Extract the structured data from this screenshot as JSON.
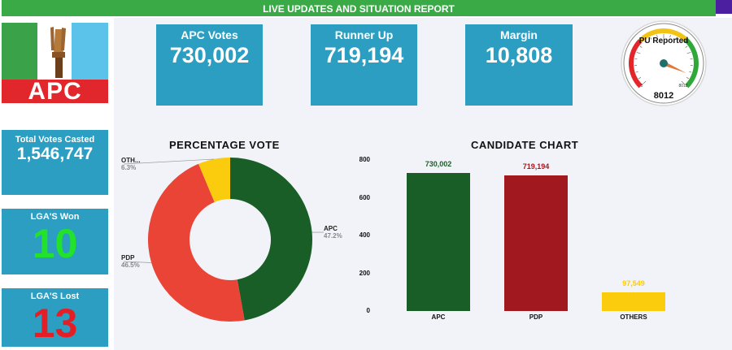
{
  "header": {
    "title": "LIVE UPDATES AND SITUATION REPORT"
  },
  "logo": {
    "text": "APC"
  },
  "summary": {
    "apc_votes_label": "APC Votes",
    "apc_votes_value": "730,002",
    "runner_up_label": "Runner Up",
    "runner_up_value": "719,194",
    "margin_label": "Margin",
    "margin_value": "10,808"
  },
  "gauge": {
    "title": "PU Reported",
    "value": "8012",
    "min_label": "0",
    "max_label": "8012",
    "fraction": 0.92
  },
  "side": {
    "total_votes_label": "Total Votes Casted",
    "total_votes_value": "1,546,747",
    "lgas_won_label": "LGA'S Won",
    "lgas_won_value": "10",
    "lgas_lost_label": "LGA'S Lost",
    "lgas_lost_value": "13"
  },
  "colors": {
    "apc": "#1a5e27",
    "pdp": "#e94436",
    "others": "#fbcc0e",
    "pdp_bar": "#a1181f",
    "won": "#22e32a",
    "lost": "#e51e25"
  },
  "chart_data": [
    {
      "type": "pie",
      "title": "PERCENTAGE  VOTE",
      "slices": [
        {
          "label": "APC",
          "pct": "47.2%",
          "value": 47.2
        },
        {
          "label": "PDP",
          "pct": "46.5%",
          "value": 46.5
        },
        {
          "label": "OTH...",
          "pct": "6.3%",
          "value": 6.3
        }
      ]
    },
    {
      "type": "bar",
      "title": "CANDIDATE CHART",
      "categories": [
        "APC",
        "PDP",
        "OTHERS"
      ],
      "values": [
        730002,
        719194,
        97549
      ],
      "value_labels": [
        "730,002",
        "719,194",
        "97,549"
      ],
      "yticks": [
        "800",
        "600",
        "400",
        "200",
        "0"
      ],
      "ylim": [
        0,
        800000
      ]
    }
  ]
}
